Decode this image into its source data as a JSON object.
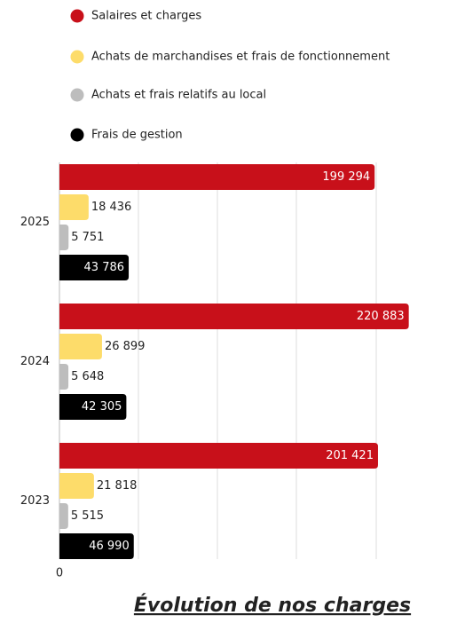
{
  "chart_data": {
    "type": "bar",
    "orientation": "horizontal",
    "title": "Évolution de nos charges",
    "categories": [
      "2025",
      "2024",
      "2023"
    ],
    "series": [
      {
        "name": "Salaires et charges",
        "color": "#c8101a",
        "values": [
          199294,
          220883,
          201421
        ],
        "value_labels": [
          "199 294",
          "220 883",
          "201 421"
        ]
      },
      {
        "name": "Achats de marchandises et frais de fonctionnement",
        "color": "#fddc6a",
        "values": [
          18436,
          26899,
          21818
        ],
        "value_labels": [
          "18 436",
          "26 899",
          "21 818"
        ]
      },
      {
        "name": "Achats et frais relatifs au local",
        "color": "#bdbdbd",
        "values": [
          5751,
          5648,
          5515
        ],
        "value_labels": [
          "5 751",
          "5 648",
          "5 515"
        ]
      },
      {
        "name": "Frais de gestion",
        "color": "#000000",
        "values": [
          43786,
          42305,
          46990
        ],
        "value_labels": [
          "43 786",
          "42 305",
          "46 990"
        ]
      }
    ],
    "xlim": [
      0,
      225000
    ],
    "xticks": [
      0
    ],
    "legend": "top"
  }
}
